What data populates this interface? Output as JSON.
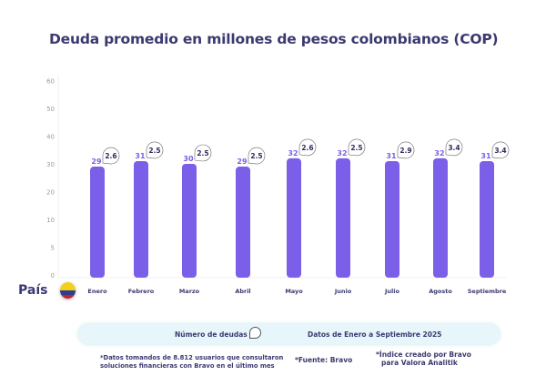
{
  "chart_data": {
    "type": "bar",
    "title": "Deuda promedio en millones de pesos colombianos (COP)",
    "categories": [
      "Enero",
      "Febrero",
      "Marzo",
      "Abril",
      "Mayo",
      "Junio",
      "Julio",
      "Agosto",
      "Septiembre"
    ],
    "series": [
      {
        "name": "Deuda promedio",
        "values": [
          29,
          31,
          30,
          29,
          32,
          32,
          31,
          32,
          31
        ]
      },
      {
        "name": "Número de deudas",
        "values": [
          2.6,
          2.5,
          2.5,
          2.5,
          2.6,
          2.5,
          2.9,
          3.4,
          3.4
        ]
      }
    ],
    "yticks": [
      0,
      5,
      10,
      20,
      30,
      40,
      50,
      60
    ],
    "ylim": [
      0,
      60
    ],
    "grid": false,
    "bar_color": "#7b5fe8",
    "label_color": "#7b5fe8"
  },
  "country_label": "País",
  "country_flag": "colombia-flag",
  "legend": {
    "bubble_label": "Número de deudas",
    "period": "Datos de Enero a Septiembre 2025"
  },
  "notes": {
    "source_users_1": "*Datos tomandos de 8.812 usuarios que consultaron",
    "source_users_2": "soluciones financieras con Bravo en el último mes",
    "source": "*Fuente: Bravo",
    "index_1": "*Índice creado por Bravo",
    "index_2": "para Valora Analitik"
  }
}
